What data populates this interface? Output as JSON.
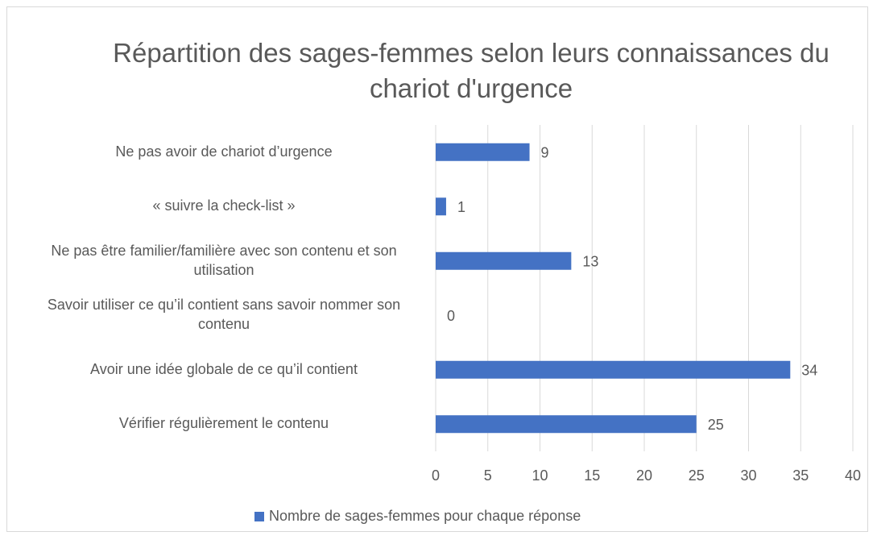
{
  "chart_data": {
    "type": "barh",
    "title": "Répartition des sages-femmes selon leurs connaissances du chariot d'urgence",
    "categories": [
      "Ne pas avoir de chariot d’urgence",
      "« suivre la check-list »",
      "Ne pas être familier/familière avec son contenu et son utilisation",
      "Savoir utiliser ce qu’il contient sans savoir nommer son contenu",
      "Avoir une idée globale de ce qu’il contient",
      "Vérifier régulièrement le contenu"
    ],
    "series": [
      {
        "name": "Nombre de sages-femmes pour chaque réponse",
        "color": "#4472c4",
        "values": [
          9,
          1,
          13,
          0,
          34,
          25
        ]
      }
    ],
    "xlim": [
      0,
      40
    ],
    "xticks": [
      0,
      5,
      10,
      15,
      20,
      25,
      30,
      35,
      40
    ],
    "grid": true,
    "legend": "bottom"
  }
}
